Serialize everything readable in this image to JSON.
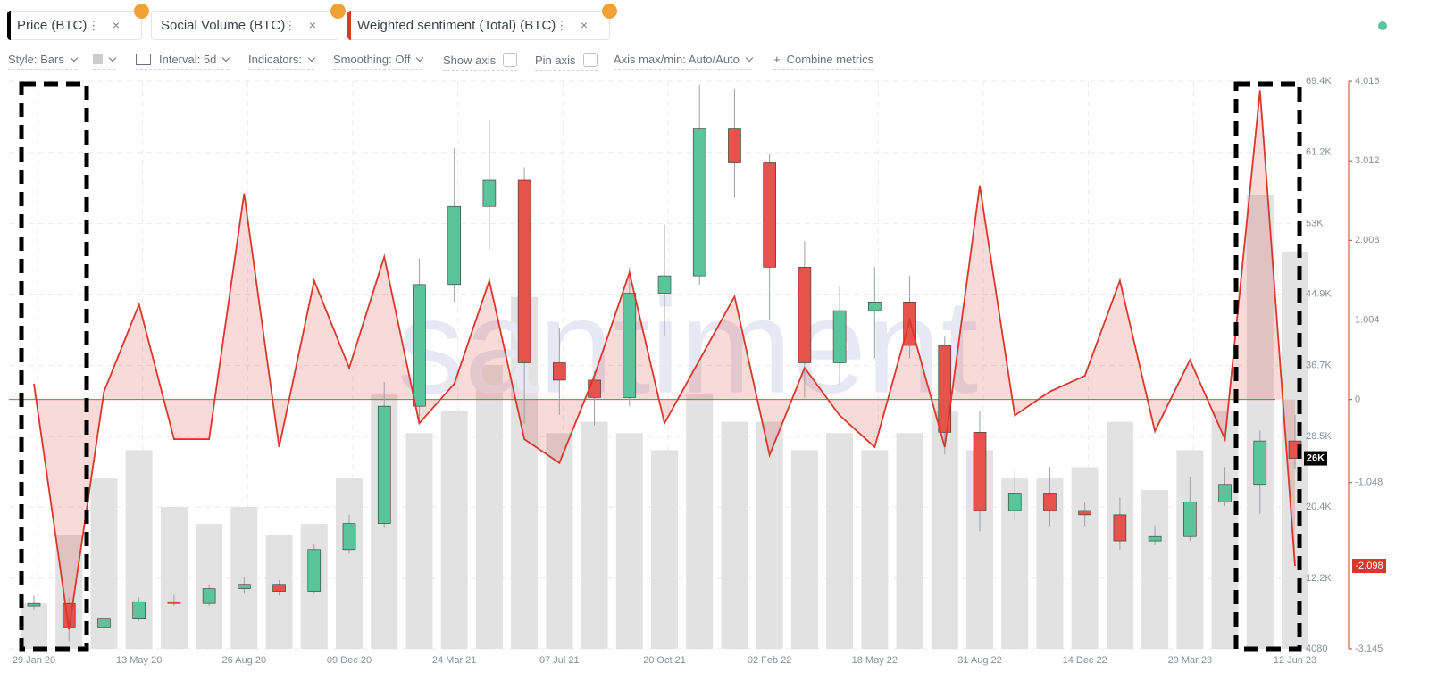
{
  "toolbar": {
    "style": "Style: Bars",
    "interval": "Interval: 5d",
    "indicators": "Indicators:",
    "smoothing": "Smoothing: Off",
    "show_axis": "Show axis",
    "pin_axis": "Pin axis",
    "axis_minmax": "Axis max/min: Auto/Auto",
    "combine": "Combine metrics"
  },
  "watermark": "santiment",
  "chart_data": {
    "type": "candlestick",
    "categories": [
      "29 Jan 20",
      null,
      null,
      "13 May 20",
      null,
      null,
      "26 Aug 20",
      null,
      null,
      "09 Dec 20",
      null,
      null,
      "24 Mar 21",
      null,
      null,
      "07 Jul 21",
      null,
      null,
      "20 Oct 21",
      null,
      null,
      "02 Feb 22",
      null,
      null,
      "18 May 22",
      null,
      null,
      "31 Aug 22",
      null,
      null,
      "14 Dec 22",
      null,
      null,
      "29 Mar 23",
      null,
      null,
      "12 Jun 23"
    ],
    "series": [
      {
        "name": "Price (BTC)",
        "type": "candlestick",
        "color": "#000000",
        "up_color": "#5cc49a",
        "down_color": "#e5534b",
        "open": [
          9000,
          9300,
          6500,
          7500,
          9500,
          9300,
          11000,
          11500,
          10700,
          15500,
          18500,
          32000,
          46000,
          55000,
          58000,
          37000,
          35000,
          33000,
          45000,
          47000,
          64000,
          60000,
          48000,
          37000,
          43000,
          44000,
          39000,
          29000,
          20000,
          22000,
          20000,
          19500,
          16500,
          17000,
          21000,
          23000,
          28000
        ],
        "high": [
          10200,
          10000,
          7800,
          10000,
          10300,
          11400,
          12400,
          12000,
          16200,
          19500,
          34800,
          49000,
          61700,
          64800,
          59500,
          41000,
          36000,
          48000,
          52900,
          69000,
          68500,
          61000,
          51000,
          45800,
          48000,
          47000,
          40000,
          31500,
          24500,
          25000,
          21000,
          21500,
          18300,
          23800,
          25000,
          29200,
          31000
        ],
        "low": [
          8600,
          4900,
          6200,
          7300,
          9000,
          9000,
          10500,
          10200,
          10500,
          15000,
          18000,
          30000,
          44000,
          50000,
          30000,
          31000,
          29800,
          32000,
          40000,
          46000,
          56000,
          42000,
          33000,
          34500,
          37500,
          37500,
          26500,
          17600,
          18900,
          18200,
          18200,
          15500,
          16000,
          16500,
          20500,
          19600,
          24800
        ],
        "close": [
          9300,
          6500,
          7500,
          9500,
          9300,
          11000,
          11500,
          10700,
          15500,
          18500,
          32000,
          46000,
          55000,
          58000,
          37000,
          35000,
          33000,
          45000,
          47000,
          64000,
          60000,
          48000,
          37000,
          43000,
          44000,
          39000,
          29000,
          20000,
          22000,
          20000,
          19500,
          16500,
          17000,
          21000,
          23000,
          28000,
          26000
        ],
        "last_label": {
          "value": 26000,
          "label": "26K"
        }
      },
      {
        "name": "Social Volume (BTC)",
        "type": "bar",
        "color": "#e2e2e2",
        "axis": "volume",
        "values": [
          8,
          20,
          30,
          35,
          25,
          22,
          25,
          20,
          22,
          30,
          45,
          38,
          42,
          50,
          62,
          38,
          40,
          38,
          35,
          45,
          40,
          40,
          35,
          38,
          35,
          38,
          42,
          35,
          30,
          30,
          32,
          40,
          28,
          35,
          42,
          80,
          70
        ]
      },
      {
        "name": "Weighted sentiment (Total) (BTC)",
        "type": "line",
        "color": "#d9372b",
        "axis": "y2",
        "area": true,
        "values": [
          0.2,
          -2.9,
          0.1,
          1.2,
          -0.5,
          -0.5,
          2.6,
          -0.6,
          1.5,
          0.4,
          1.8,
          -0.3,
          0.2,
          1.5,
          -0.5,
          -0.8,
          0.3,
          1.6,
          -0.3,
          0.5,
          1.3,
          -0.7,
          0.4,
          -0.2,
          -0.6,
          1.0,
          -0.6,
          2.7,
          -0.2,
          0.1,
          0.3,
          1.5,
          -0.4,
          0.5,
          -0.5,
          3.9,
          -2.098
        ]
      }
    ],
    "ylim": [
      4080,
      69400
    ],
    "yticks": [
      4080,
      {
        "value": 12200,
        "label": "12.2K"
      },
      {
        "value": 20400,
        "label": "20.4K"
      },
      {
        "value": 28500,
        "label": "28.5K"
      },
      {
        "value": 36700,
        "label": "36.7K"
      },
      {
        "value": 44900,
        "label": "44.9K"
      },
      {
        "value": 53000,
        "label": "53K"
      },
      {
        "value": 61200,
        "label": "61.2K"
      },
      {
        "value": 69400,
        "label": "69.4K"
      }
    ],
    "y2lim": [
      -3.145,
      4.016
    ],
    "y2ticks": [
      -3.145,
      -1.048,
      0,
      1.004,
      2.008,
      3.012,
      4.016
    ],
    "vlim": [
      0,
      100
    ],
    "grid": true
  }
}
